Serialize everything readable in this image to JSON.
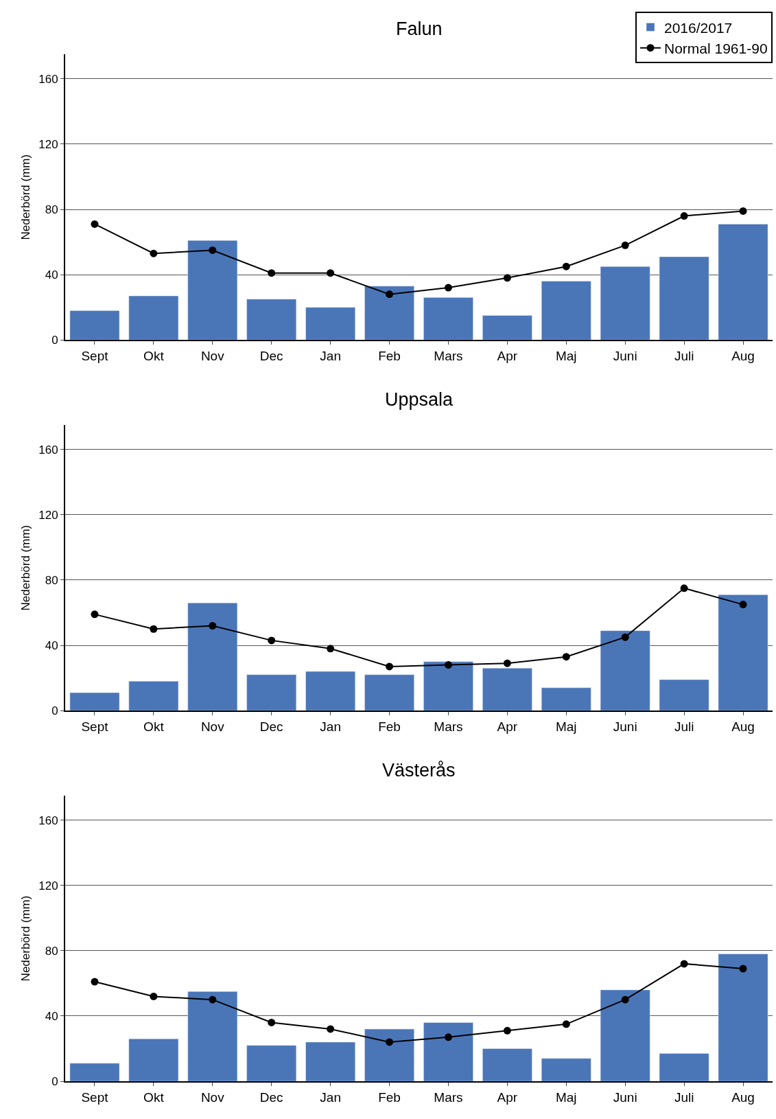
{
  "chart_data": [
    {
      "type": "bar",
      "title": "Falun",
      "ylabel": "Nederbörd (mm)",
      "categories": [
        "Sept",
        "Okt",
        "Nov",
        "Dec",
        "Jan",
        "Feb",
        "Mars",
        "Apr",
        "Maj",
        "Juni",
        "Juli",
        "Aug"
      ],
      "ylim": [
        0,
        175
      ],
      "yticks": [
        0,
        40,
        80,
        120,
        160
      ],
      "grid": "y",
      "legend": "top right",
      "series": [
        {
          "name": "2016/2017",
          "color": "#4a76b8",
          "values": [
            18,
            27,
            61,
            25,
            20,
            33,
            26,
            15,
            36,
            45,
            51,
            71
          ]
        },
        {
          "name": "Normal 1961-90",
          "type": "line",
          "color": "#000000",
          "marker": "circle",
          "values": [
            71,
            53,
            55,
            41,
            41,
            28,
            32,
            38,
            45,
            58,
            76,
            79
          ]
        }
      ]
    },
    {
      "type": "bar",
      "title": "Uppsala",
      "ylabel": "Nederbörd (mm)",
      "categories": [
        "Sept",
        "Okt",
        "Nov",
        "Dec",
        "Jan",
        "Feb",
        "Mars",
        "Apr",
        "Maj",
        "Juni",
        "Juli",
        "Aug"
      ],
      "ylim": [
        0,
        175
      ],
      "yticks": [
        0,
        40,
        80,
        120,
        160
      ],
      "grid": "y",
      "series": [
        {
          "color": "#4a76b8",
          "values": [
            11,
            18,
            66,
            22,
            24,
            22,
            30,
            26,
            14,
            49,
            19,
            71
          ]
        },
        {
          "type": "line",
          "color": "#000000",
          "marker": "circle",
          "values": [
            59,
            50,
            52,
            43,
            38,
            27,
            28,
            29,
            33,
            45,
            75,
            65
          ]
        }
      ]
    },
    {
      "type": "bar",
      "title": "Västerås",
      "ylabel": "Nederbörd (mm)",
      "categories": [
        "Sept",
        "Okt",
        "Nov",
        "Dec",
        "Jan",
        "Feb",
        "Mars",
        "Apr",
        "Maj",
        "Juni",
        "Juli",
        "Aug"
      ],
      "ylim": [
        0,
        175
      ],
      "yticks": [
        0,
        40,
        80,
        120,
        160
      ],
      "grid": "y",
      "series": [
        {
          "color": "#4a76b8",
          "values": [
            11,
            26,
            55,
            22,
            24,
            32,
            36,
            20,
            14,
            56,
            17,
            78
          ]
        },
        {
          "type": "line",
          "color": "#000000",
          "marker": "circle",
          "values": [
            61,
            52,
            50,
            36,
            32,
            24,
            27,
            31,
            35,
            50,
            72,
            69
          ]
        }
      ]
    }
  ]
}
